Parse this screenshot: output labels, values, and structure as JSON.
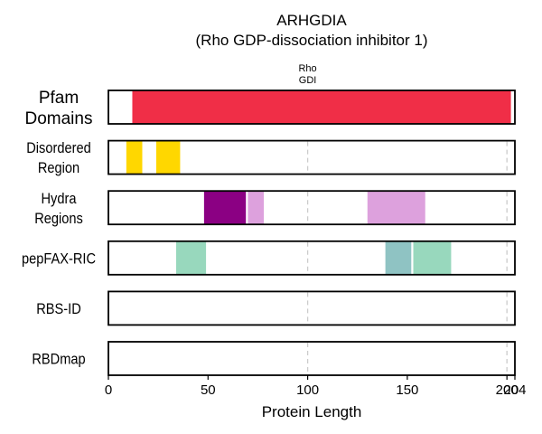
{
  "chart_data": {
    "type": "bar",
    "title": "ARHGDIA",
    "subtitle": "(Rho GDP-dissociation inhibitor 1)",
    "xlabel": "Protein Length",
    "xlim": [
      0,
      204
    ],
    "x_ticks": [
      0,
      50,
      100,
      150,
      200,
      204
    ],
    "reference_lines": [
      100,
      200
    ],
    "grid": false,
    "tracks": [
      {
        "name_lines": [
          "Pfam",
          "Domains"
        ],
        "segments": [
          {
            "start": 12,
            "end": 202,
            "color": "#f02e47",
            "label": "Rho GDI"
          }
        ]
      },
      {
        "name_lines": [
          "Disordered",
          "Region"
        ],
        "segments": [
          {
            "start": 9,
            "end": 17,
            "color": "#ffd700"
          },
          {
            "start": 24,
            "end": 36,
            "color": "#ffd700"
          }
        ]
      },
      {
        "name_lines": [
          "Hydra",
          "Regions"
        ],
        "segments": [
          {
            "start": 48,
            "end": 69,
            "color": "#8b0083"
          },
          {
            "start": 70,
            "end": 78,
            "color": "#dda1dd"
          },
          {
            "start": 130,
            "end": 159,
            "color": "#dda1dd"
          }
        ]
      },
      {
        "name_lines": [
          "pepFAX-RIC"
        ],
        "segments": [
          {
            "start": 34,
            "end": 49,
            "color": "#98d8bd"
          },
          {
            "start": 139,
            "end": 152,
            "color": "#8fc3c3"
          },
          {
            "start": 153,
            "end": 172,
            "color": "#98d8bd"
          }
        ]
      },
      {
        "name_lines": [
          "RBS-ID"
        ],
        "segments": []
      },
      {
        "name_lines": [
          "RBDmap"
        ],
        "segments": []
      }
    ]
  }
}
